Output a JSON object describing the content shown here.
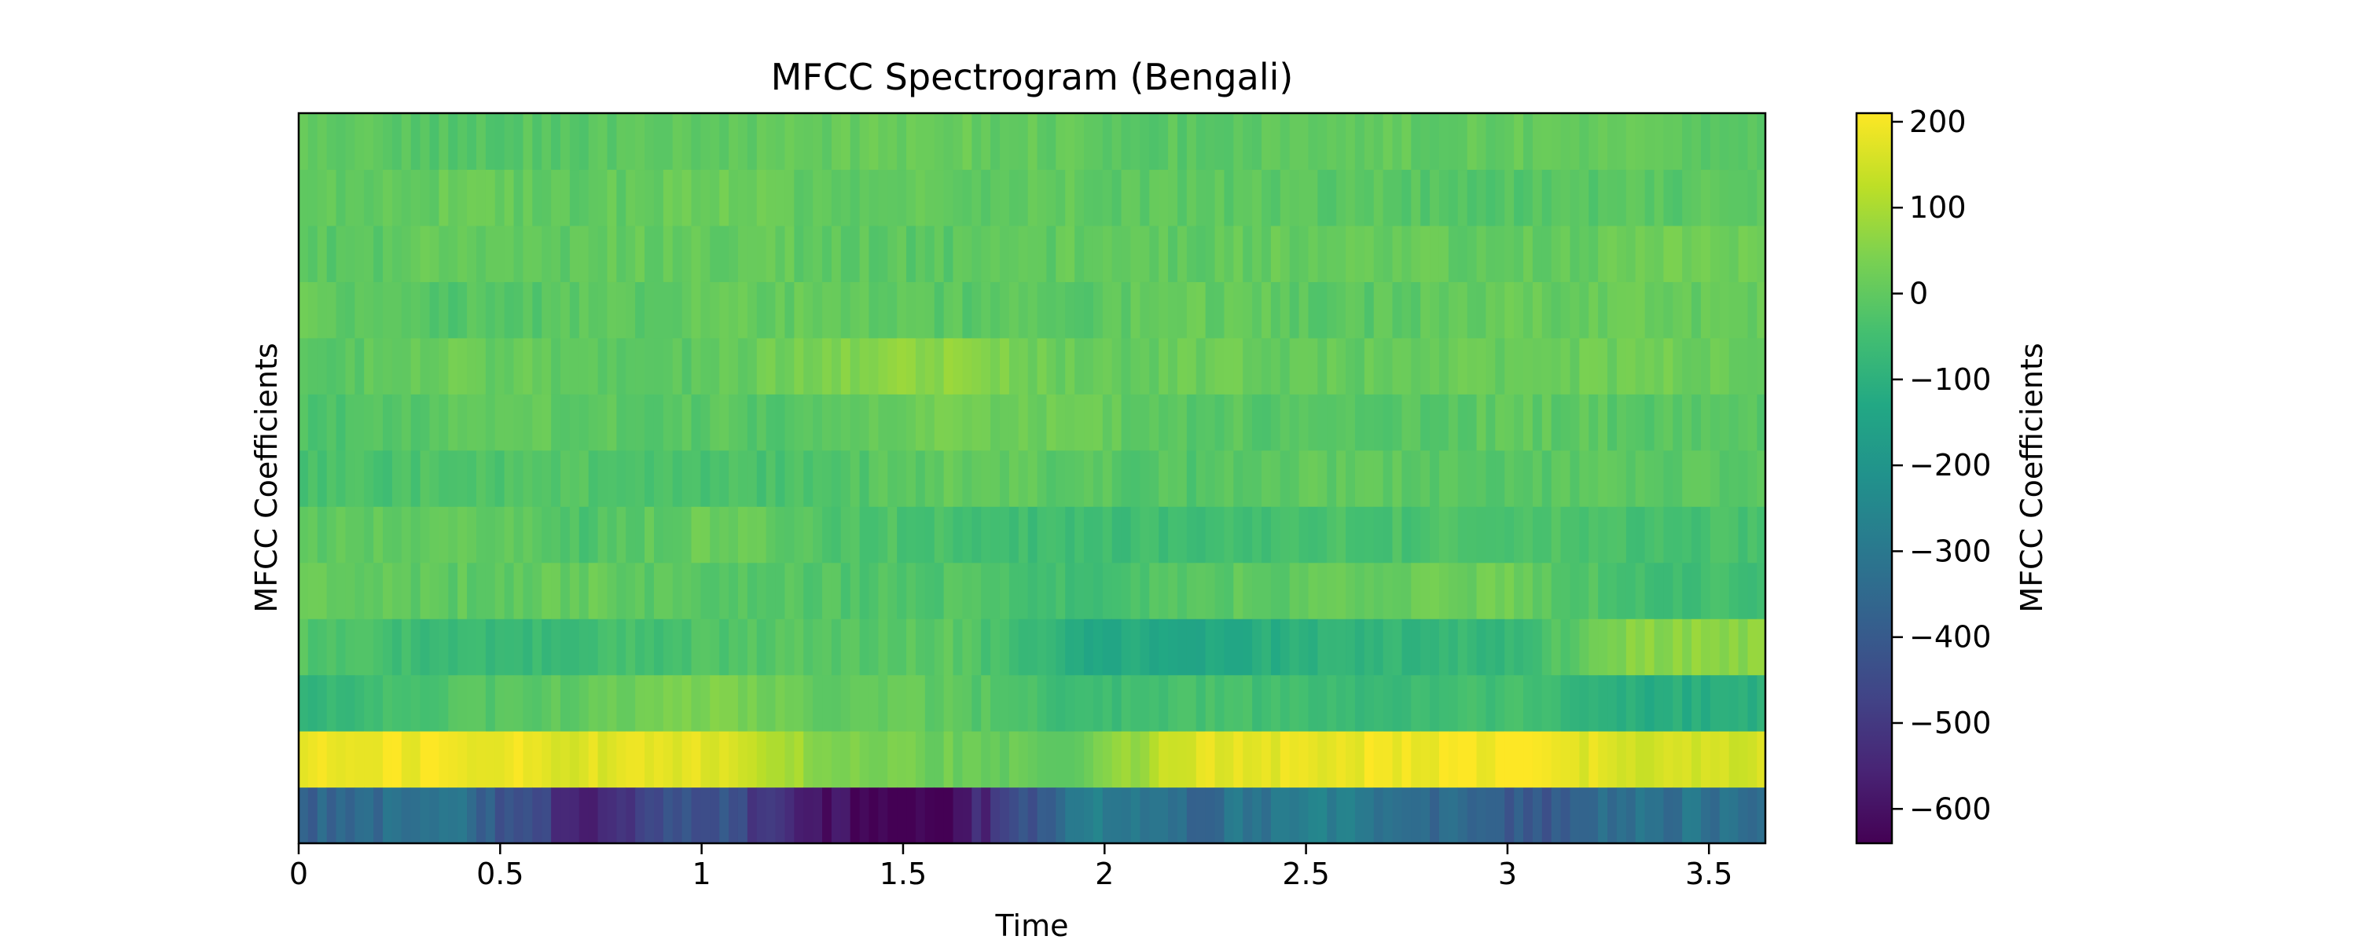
{
  "chart_data": {
    "type": "heatmap",
    "title": "MFCC Spectrogram (Bengali)",
    "xlabel": "Time",
    "ylabel": "MFCC Coefficients",
    "colorbar_label": "MFCC Coefficients",
    "colormap": "viridis",
    "xlim": [
      0,
      3.64
    ],
    "x_ticks": [
      0,
      0.5,
      1,
      1.5,
      2,
      2.5,
      3,
      3.5
    ],
    "x_tick_labels": [
      "0",
      "0.5",
      "1",
      "1.5",
      "2",
      "2.5",
      "3",
      "3.5"
    ],
    "ylim": [
      0,
      13
    ],
    "y_ticks": [],
    "clim": [
      -640,
      210
    ],
    "colorbar_ticks": [
      200,
      100,
      0,
      -100,
      -200,
      -300,
      -400,
      -500,
      -600
    ],
    "colorbar_tick_labels": [
      "200",
      "100",
      "0",
      "−100",
      "−200",
      "−300",
      "−400",
      "−500",
      "−600"
    ],
    "n_coefficients": 13,
    "time_step": 0.0232,
    "segments": [
      {
        "t": 0.0,
        "values": [
          -380,
          185,
          -90,
          -25,
          10,
          -10,
          -40,
          -30,
          -15,
          10,
          -15,
          5,
          0
        ]
      },
      {
        "t": 0.35,
        "values": [
          -300,
          200,
          -30,
          -70,
          -5,
          10,
          -30,
          -10,
          15,
          -20,
          5,
          10,
          -20
        ]
      },
      {
        "t": 0.7,
        "values": [
          -560,
          170,
          5,
          -60,
          10,
          -30,
          -20,
          0,
          0,
          -10,
          0,
          0,
          -10
        ]
      },
      {
        "t": 1.0,
        "values": [
          -410,
          175,
          40,
          -30,
          -20,
          20,
          -40,
          -10,
          -10,
          0,
          10,
          15,
          0
        ]
      },
      {
        "t": 1.3,
        "values": [
          -610,
          60,
          0,
          -10,
          -20,
          -20,
          -30,
          -20,
          50,
          10,
          0,
          5,
          10
        ]
      },
      {
        "t": 1.6,
        "values": [
          -630,
          20,
          0,
          -10,
          -25,
          -40,
          5,
          30,
          70,
          -10,
          -10,
          0,
          10
        ]
      },
      {
        "t": 1.95,
        "values": [
          -260,
          10,
          -70,
          -120,
          -60,
          -60,
          -10,
          10,
          0,
          -10,
          5,
          0,
          0
        ]
      },
      {
        "t": 2.2,
        "values": [
          -340,
          170,
          -40,
          -130,
          -10,
          -50,
          -20,
          -10,
          20,
          10,
          0,
          -10,
          -10
        ]
      },
      {
        "t": 2.6,
        "values": [
          -270,
          190,
          -60,
          -90,
          5,
          -40,
          0,
          -20,
          0,
          -10,
          10,
          -10,
          0
        ]
      },
      {
        "t": 3.0,
        "values": [
          -420,
          200,
          -50,
          -70,
          20,
          -30,
          -10,
          0,
          15,
          10,
          0,
          -20,
          10
        ]
      },
      {
        "t": 3.3,
        "values": [
          -320,
          160,
          -110,
          60,
          -50,
          -40,
          -10,
          -10,
          20,
          10,
          20,
          -10,
          0
        ]
      }
    ]
  }
}
